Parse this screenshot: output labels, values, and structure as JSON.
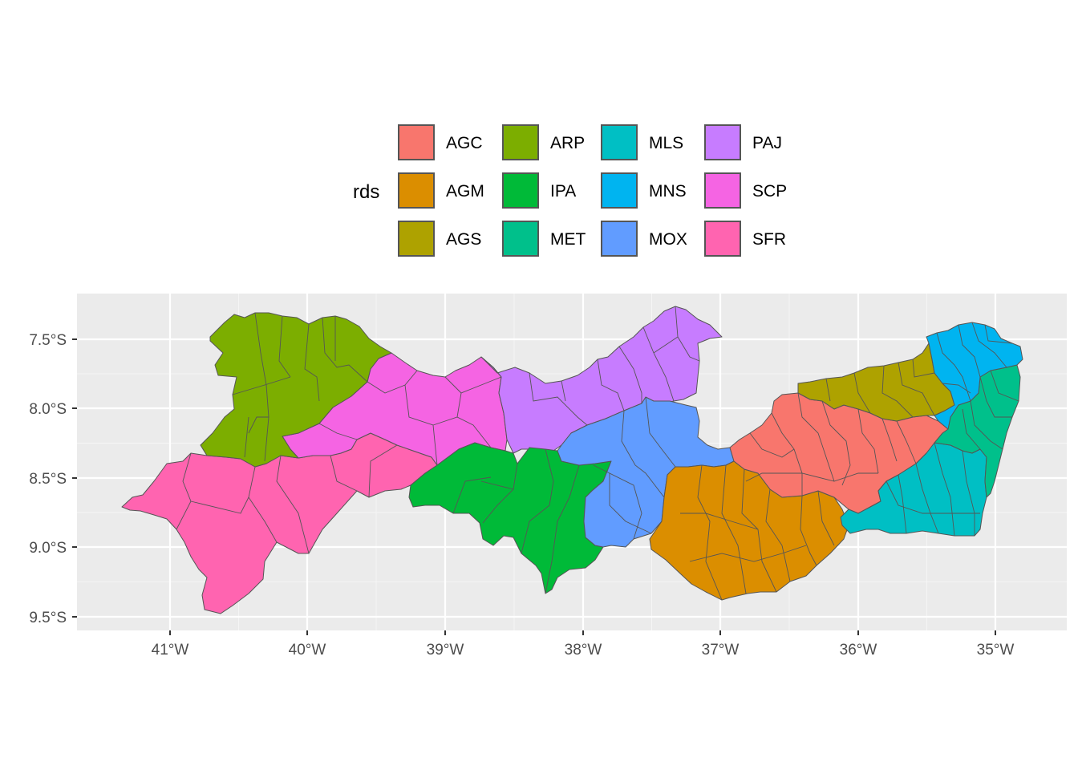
{
  "legend": {
    "title": "rds",
    "entries": [
      {
        "label": "AGC",
        "color": "#F8766D"
      },
      {
        "label": "AGM",
        "color": "#DB8E00"
      },
      {
        "label": "AGS",
        "color": "#AEA200"
      },
      {
        "label": "ARP",
        "color": "#7CAE00"
      },
      {
        "label": "IPA",
        "color": "#00BA38"
      },
      {
        "label": "MET",
        "color": "#00C08B"
      },
      {
        "label": "MLS",
        "color": "#00BFC4"
      },
      {
        "label": "MNS",
        "color": "#00B4F0"
      },
      {
        "label": "MOX",
        "color": "#619CFF"
      },
      {
        "label": "PAJ",
        "color": "#C77CFF"
      },
      {
        "label": "SCP",
        "color": "#F564E3"
      },
      {
        "label": "SFR",
        "color": "#FF64B0"
      }
    ]
  },
  "axes": {
    "x_ticks": [
      "41°W",
      "40°W",
      "39°W",
      "38°W",
      "37°W",
      "36°W",
      "35°W"
    ],
    "y_ticks": [
      "7.5°S",
      "8.0°S",
      "8.5°S",
      "9.0°S",
      "9.5°S"
    ]
  },
  "map": {
    "background": "#ebebeb",
    "gridline_color": "#ffffff",
    "border_color": "#555555"
  }
}
